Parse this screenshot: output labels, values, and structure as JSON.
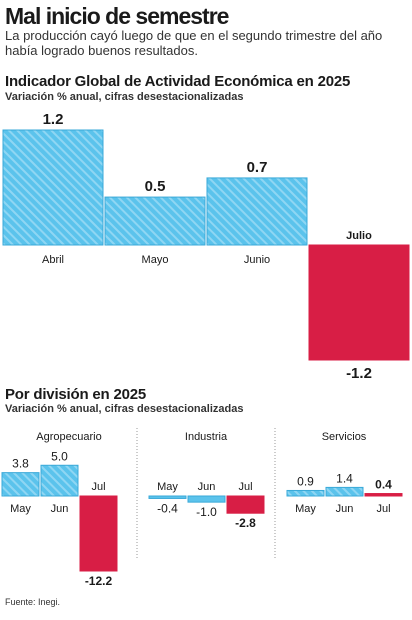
{
  "header": {
    "headline": "Mal inicio de semestre",
    "dek": "La producción cayó luego de que en el segundo trimestre del año había logrado buenos resultados."
  },
  "colors": {
    "positive": "#5bc3ec",
    "negative": "#d81e45",
    "stripe": "#8fd6f3",
    "divider": "#9a9a9a"
  },
  "chart_data": [
    {
      "type": "bar",
      "title": "Indicador Global de Actividad Económica en 2025",
      "subtitle": "Variación % anual, cifras desestacionalizadas",
      "categories": [
        "Abril",
        "Mayo",
        "Junio",
        "Julio"
      ],
      "values": [
        1.2,
        0.5,
        0.7,
        -1.2
      ],
      "value_labels": [
        "1.2",
        "0.5",
        "0.7",
        "-1.2"
      ],
      "highlight": "Julio",
      "ylim": [
        -1.2,
        1.2
      ]
    },
    {
      "type": "bar",
      "title": "Por división en 2025",
      "subtitle": "Variación % anual, cifras desestacionalizadas",
      "panels": [
        {
          "name": "Agropecuario",
          "categories": [
            "May",
            "Jun",
            "Jul"
          ],
          "values": [
            3.8,
            5.0,
            -12.2
          ],
          "value_labels": [
            "3.8",
            "5.0",
            "-12.2"
          ]
        },
        {
          "name": "Industria",
          "categories": [
            "May",
            "Jun",
            "Jul"
          ],
          "values": [
            -0.4,
            -1.0,
            -2.8
          ],
          "value_labels": [
            "-0.4",
            "-1.0",
            "-2.8"
          ]
        },
        {
          "name": "Servicios",
          "categories": [
            "May",
            "Jun",
            "Jul"
          ],
          "values": [
            0.9,
            1.4,
            0.4
          ],
          "value_labels": [
            "0.9",
            "1.4",
            "0.4"
          ]
        }
      ],
      "ylim": [
        -12.2,
        5.0
      ]
    }
  ],
  "footer": {
    "source": "Fuente: Inegi."
  }
}
